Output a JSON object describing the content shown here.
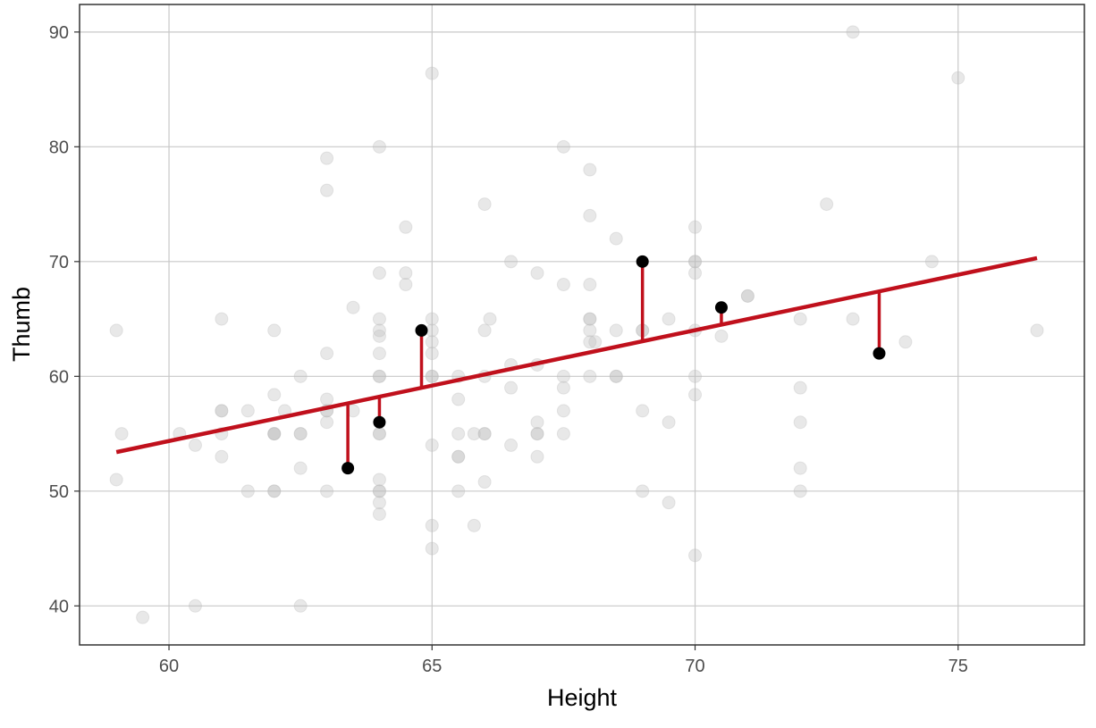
{
  "chart_data": {
    "type": "scatter",
    "title": "",
    "xlabel": "Height",
    "ylabel": "Thumb",
    "xlim": [
      58.3,
      77.4
    ],
    "ylim": [
      36.6,
      92.4
    ],
    "x_ticks": [
      60,
      65,
      70,
      75
    ],
    "y_ticks": [
      40,
      50,
      60,
      70,
      80,
      90
    ],
    "grid": true,
    "legend": "none",
    "colors": {
      "background_points": "#bdbdbd",
      "highlight_points": "#000000",
      "fit_line": "#c0101c",
      "residuals": "#c0101c",
      "grid": "#c8c8c8",
      "panel_border": "#333333"
    },
    "fit_line": {
      "x": [
        59,
        76.5
      ],
      "y": [
        53.4,
        70.3
      ]
    },
    "background_points": [
      {
        "x": 59,
        "y": 64
      },
      {
        "x": 59.1,
        "y": 55
      },
      {
        "x": 59,
        "y": 51
      },
      {
        "x": 59.5,
        "y": 39
      },
      {
        "x": 60.2,
        "y": 55
      },
      {
        "x": 60.5,
        "y": 54
      },
      {
        "x": 60.5,
        "y": 40
      },
      {
        "x": 61,
        "y": 65
      },
      {
        "x": 61,
        "y": 57
      },
      {
        "x": 61,
        "y": 57
      },
      {
        "x": 61,
        "y": 55
      },
      {
        "x": 61,
        "y": 53
      },
      {
        "x": 61.5,
        "y": 57
      },
      {
        "x": 61.5,
        "y": 50
      },
      {
        "x": 62,
        "y": 64
      },
      {
        "x": 62,
        "y": 58.4
      },
      {
        "x": 62,
        "y": 55
      },
      {
        "x": 62,
        "y": 55
      },
      {
        "x": 62,
        "y": 55
      },
      {
        "x": 62,
        "y": 50
      },
      {
        "x": 62,
        "y": 50
      },
      {
        "x": 62.2,
        "y": 57
      },
      {
        "x": 62.5,
        "y": 60
      },
      {
        "x": 62.5,
        "y": 55
      },
      {
        "x": 62.5,
        "y": 55
      },
      {
        "x": 62.5,
        "y": 52
      },
      {
        "x": 62.5,
        "y": 40
      },
      {
        "x": 63,
        "y": 79
      },
      {
        "x": 63,
        "y": 76.2
      },
      {
        "x": 63,
        "y": 62
      },
      {
        "x": 63,
        "y": 58
      },
      {
        "x": 63,
        "y": 57
      },
      {
        "x": 63,
        "y": 57
      },
      {
        "x": 63,
        "y": 56
      },
      {
        "x": 63,
        "y": 50
      },
      {
        "x": 63.5,
        "y": 66
      },
      {
        "x": 63.5,
        "y": 57
      },
      {
        "x": 64,
        "y": 80
      },
      {
        "x": 64,
        "y": 69
      },
      {
        "x": 64,
        "y": 65
      },
      {
        "x": 64,
        "y": 64
      },
      {
        "x": 64,
        "y": 63.5
      },
      {
        "x": 64,
        "y": 62
      },
      {
        "x": 64,
        "y": 60
      },
      {
        "x": 64,
        "y": 60
      },
      {
        "x": 64,
        "y": 55
      },
      {
        "x": 64,
        "y": 55
      },
      {
        "x": 64,
        "y": 51
      },
      {
        "x": 64,
        "y": 50
      },
      {
        "x": 64,
        "y": 50
      },
      {
        "x": 64,
        "y": 49
      },
      {
        "x": 64,
        "y": 48
      },
      {
        "x": 64.5,
        "y": 73
      },
      {
        "x": 64.5,
        "y": 69
      },
      {
        "x": 64.5,
        "y": 68
      },
      {
        "x": 65,
        "y": 86.4
      },
      {
        "x": 65,
        "y": 65
      },
      {
        "x": 65,
        "y": 64
      },
      {
        "x": 65,
        "y": 63
      },
      {
        "x": 65,
        "y": 62
      },
      {
        "x": 65,
        "y": 60
      },
      {
        "x": 65,
        "y": 60
      },
      {
        "x": 65,
        "y": 54
      },
      {
        "x": 65,
        "y": 47
      },
      {
        "x": 65,
        "y": 45
      },
      {
        "x": 65.5,
        "y": 60
      },
      {
        "x": 65.5,
        "y": 58
      },
      {
        "x": 65.5,
        "y": 55
      },
      {
        "x": 65.5,
        "y": 53
      },
      {
        "x": 65.5,
        "y": 53
      },
      {
        "x": 65.5,
        "y": 50
      },
      {
        "x": 65.8,
        "y": 55
      },
      {
        "x": 65.8,
        "y": 47
      },
      {
        "x": 66,
        "y": 75
      },
      {
        "x": 66,
        "y": 64
      },
      {
        "x": 66,
        "y": 60
      },
      {
        "x": 66,
        "y": 55
      },
      {
        "x": 66,
        "y": 55
      },
      {
        "x": 66,
        "y": 50.8
      },
      {
        "x": 66.1,
        "y": 65
      },
      {
        "x": 66.5,
        "y": 70
      },
      {
        "x": 66.5,
        "y": 61
      },
      {
        "x": 66.5,
        "y": 59
      },
      {
        "x": 66.5,
        "y": 54
      },
      {
        "x": 67,
        "y": 69
      },
      {
        "x": 67,
        "y": 61
      },
      {
        "x": 67,
        "y": 56
      },
      {
        "x": 67,
        "y": 55
      },
      {
        "x": 67,
        "y": 55
      },
      {
        "x": 67,
        "y": 53
      },
      {
        "x": 67.5,
        "y": 80
      },
      {
        "x": 67.5,
        "y": 68
      },
      {
        "x": 67.5,
        "y": 60
      },
      {
        "x": 67.5,
        "y": 59
      },
      {
        "x": 67.5,
        "y": 57
      },
      {
        "x": 67.5,
        "y": 55
      },
      {
        "x": 68,
        "y": 78
      },
      {
        "x": 68,
        "y": 74
      },
      {
        "x": 68,
        "y": 68
      },
      {
        "x": 68,
        "y": 65
      },
      {
        "x": 68,
        "y": 65
      },
      {
        "x": 68,
        "y": 64
      },
      {
        "x": 68,
        "y": 63
      },
      {
        "x": 68,
        "y": 60
      },
      {
        "x": 68.1,
        "y": 63
      },
      {
        "x": 68.5,
        "y": 72
      },
      {
        "x": 68.5,
        "y": 64
      },
      {
        "x": 68.5,
        "y": 60
      },
      {
        "x": 68.5,
        "y": 60
      },
      {
        "x": 69,
        "y": 64
      },
      {
        "x": 69,
        "y": 64
      },
      {
        "x": 69,
        "y": 57
      },
      {
        "x": 69,
        "y": 50
      },
      {
        "x": 69.5,
        "y": 65
      },
      {
        "x": 69.5,
        "y": 56
      },
      {
        "x": 69.5,
        "y": 49
      },
      {
        "x": 70,
        "y": 73
      },
      {
        "x": 70,
        "y": 70
      },
      {
        "x": 70,
        "y": 70
      },
      {
        "x": 70,
        "y": 69
      },
      {
        "x": 70,
        "y": 64
      },
      {
        "x": 70,
        "y": 60
      },
      {
        "x": 70,
        "y": 58.4
      },
      {
        "x": 70,
        "y": 44.4
      },
      {
        "x": 70.5,
        "y": 63.5
      },
      {
        "x": 71,
        "y": 67
      },
      {
        "x": 71,
        "y": 67
      },
      {
        "x": 72,
        "y": 65
      },
      {
        "x": 72,
        "y": 59
      },
      {
        "x": 72,
        "y": 56
      },
      {
        "x": 72,
        "y": 52
      },
      {
        "x": 72,
        "y": 50
      },
      {
        "x": 72.5,
        "y": 75
      },
      {
        "x": 73,
        "y": 90
      },
      {
        "x": 73,
        "y": 65
      },
      {
        "x": 74,
        "y": 63
      },
      {
        "x": 74.5,
        "y": 70
      },
      {
        "x": 75,
        "y": 86
      },
      {
        "x": 76.5,
        "y": 64
      }
    ],
    "highlight_points": [
      {
        "x": 63.4,
        "y": 52,
        "fitted": 57.5
      },
      {
        "x": 64,
        "y": 56,
        "fitted": 58.1
      },
      {
        "x": 64.8,
        "y": 64,
        "fitted": 58.9
      },
      {
        "x": 69,
        "y": 70,
        "fitted": 62.9
      },
      {
        "x": 70.5,
        "y": 66,
        "fitted": 64.4
      },
      {
        "x": 73.5,
        "y": 62,
        "fitted": 67.3
      }
    ]
  }
}
